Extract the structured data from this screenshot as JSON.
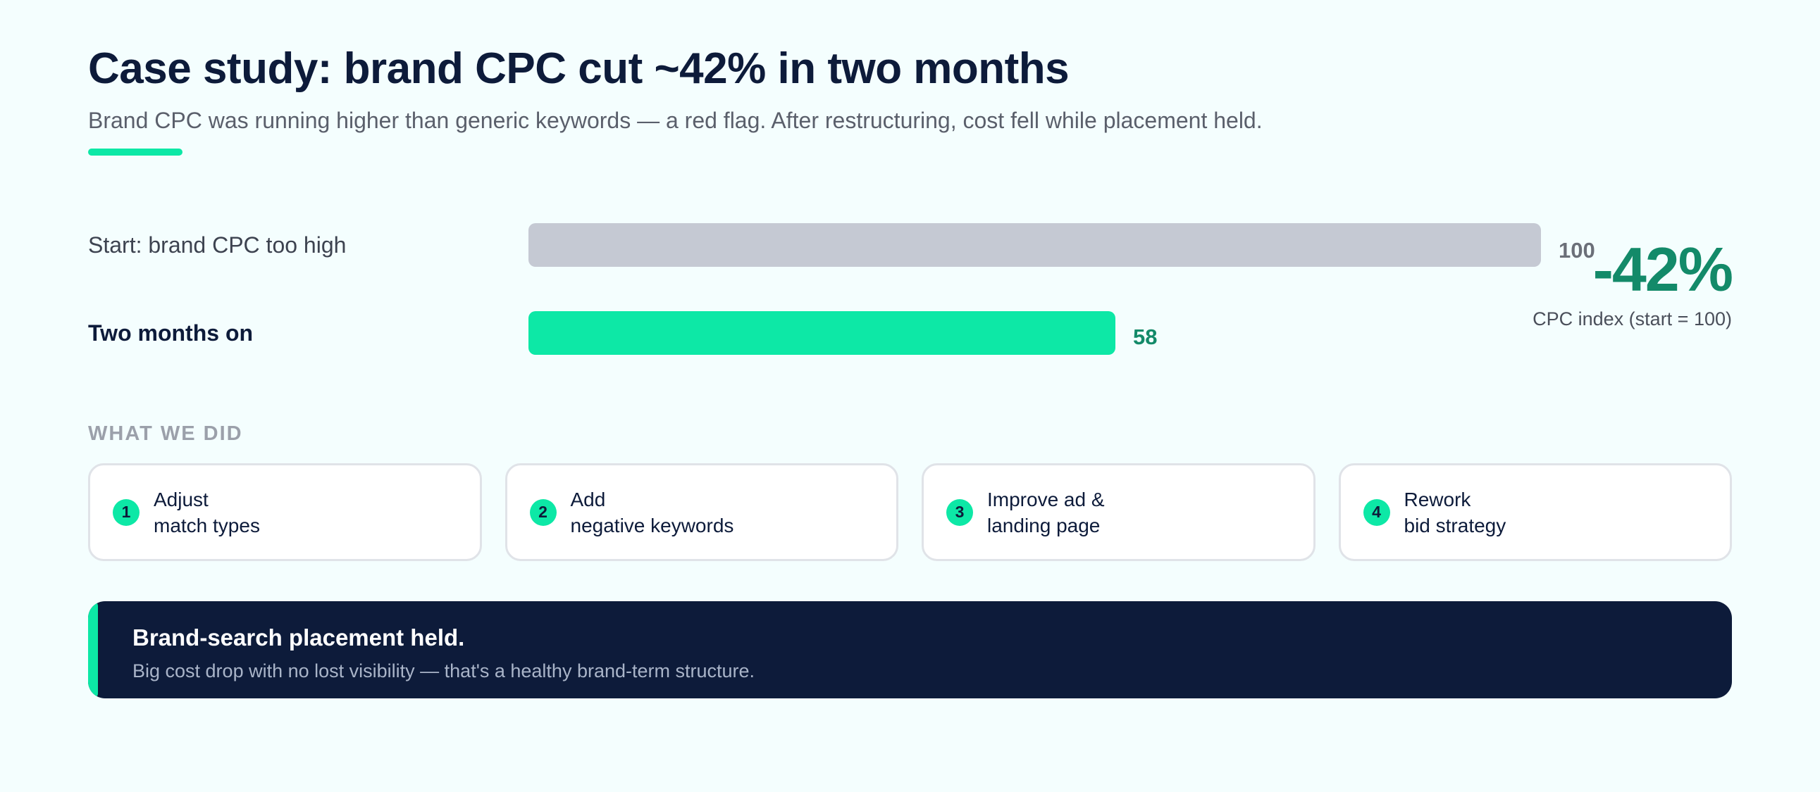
{
  "header": {
    "title": "Case study: brand CPC cut ~42% in two months",
    "subtitle": "Brand CPC was running higher than generic keywords — a red flag. After restructuring, cost fell while placement held."
  },
  "chart_data": {
    "type": "bar",
    "orientation": "horizontal",
    "categories": [
      "Start: brand CPC too high",
      "Two months on"
    ],
    "values": [
      100,
      58
    ],
    "value_labels": [
      "100",
      "58"
    ],
    "xlim": [
      0,
      100
    ],
    "grid": false,
    "annotation": "-42%",
    "annotation_caption": "CPC index (start = 100)",
    "colors": [
      "#c5c9d3",
      "#0de8a6"
    ]
  },
  "steps": {
    "heading": "WHAT WE DID",
    "items": [
      {
        "num": "1",
        "line1": "Adjust",
        "line2": "match types"
      },
      {
        "num": "2",
        "line1": "Add",
        "line2": "negative keywords"
      },
      {
        "num": "3",
        "line1": "Improve ad &",
        "line2": "landing page"
      },
      {
        "num": "4",
        "line1": "Rework",
        "line2": "bid strategy"
      }
    ]
  },
  "callout": {
    "headline": "Brand-search placement held.",
    "body": "Big cost drop with no lost visibility — that's a healthy brand-term structure."
  },
  "colors": {
    "accent": "#0de8a6",
    "accent_dark": "#138a69",
    "navy": "#0d1b3a",
    "muted_bar": "#c5c9d3"
  }
}
